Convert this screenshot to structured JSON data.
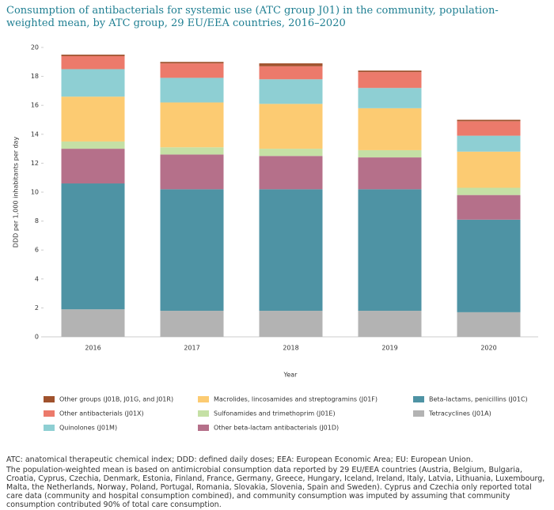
{
  "chart_data": {
    "type": "stacked_bar",
    "title": "Consumption of antibacterials for systemic use (ATC group J01) in the community, population-weighted mean, by ATC group, 29 EU/EEA countries, 2016–2020",
    "x_label": "Year",
    "y_label": "DDD per 1,000 inhabitants per day",
    "categories": [
      "2016",
      "2017",
      "2018",
      "2019",
      "2020"
    ],
    "ylim": [
      0,
      20
    ],
    "yticks": [
      0,
      2,
      4,
      6,
      8,
      10,
      12,
      14,
      16,
      18,
      20
    ],
    "series": [
      {
        "name": "Tetracyclines (J01A)",
        "color": "#b3b3b3",
        "values": [
          1.9,
          1.8,
          1.8,
          1.8,
          1.7
        ]
      },
      {
        "name": "Beta-lactams, penicillins (J01C)",
        "color": "#4e93a4",
        "values": [
          8.7,
          8.4,
          8.4,
          8.4,
          6.4
        ]
      },
      {
        "name": "Other beta-lactam antibacterials (J01D)",
        "color": "#b5708a",
        "values": [
          2.4,
          2.4,
          2.3,
          2.2,
          1.7
        ]
      },
      {
        "name": "Sulfonamides and trimethoprim (J01E)",
        "color": "#c5e0a5",
        "values": [
          0.5,
          0.5,
          0.5,
          0.5,
          0.5
        ]
      },
      {
        "name": "Macrolides, lincosamides and streptogramins (J01F)",
        "color": "#fccb72",
        "values": [
          3.1,
          3.1,
          3.1,
          2.9,
          2.5
        ]
      },
      {
        "name": "Quinolones (J01M)",
        "color": "#8ecfd3",
        "values": [
          1.9,
          1.7,
          1.7,
          1.4,
          1.1
        ]
      },
      {
        "name": "Other antibacterials (J01X)",
        "color": "#ec7a6b",
        "values": [
          0.9,
          1.0,
          0.9,
          1.1,
          1.0
        ]
      },
      {
        "name": "Other groups (J01B, J01G, and J01R)",
        "color": "#a0522d",
        "values": [
          0.1,
          0.1,
          0.2,
          0.1,
          0.1
        ]
      }
    ],
    "notes": [
      "ATC: anatomical therapeutic chemical index; DDD: defined daily doses; EEA: European Economic Area; EU: European Union.",
      "The population-weighted mean is based on antimicrobial consumption data reported by 29 EU/EEA countries (Austria, Belgium, Bulgaria, Croatia, Cyprus, Czechia, Denmark, Estonia, Finland, France, Germany, Greece, Hungary, Iceland, Ireland, Italy, Latvia, Lithuania, Luxembourg, Malta, the Netherlands, Norway, Poland, Portugal, Romania, Slovakia, Slovenia, Spain and Sweden). Cyprus and Czechia only reported total care data (community and hospital consumption combined), and community consumption was imputed by assuming that community consumption contributed 90% of total care consumption."
    ]
  }
}
